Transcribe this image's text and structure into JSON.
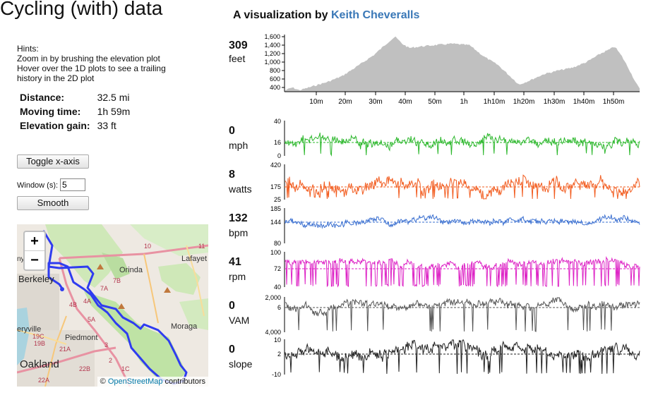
{
  "title": "Cycling (with) data",
  "subtitle": {
    "prefix": "A visualization by ",
    "author": "Keith Cheveralls"
  },
  "hints": {
    "heading": "Hints:",
    "lines": [
      "Zoom in by brushing the elevation plot",
      "Hover over the 1D plots to see a trailing",
      "history in the 2D plot"
    ]
  },
  "stats": [
    {
      "label": "Distance:",
      "value": "32.5 mi"
    },
    {
      "label": "Moving time:",
      "value": "1h 59m"
    },
    {
      "label": "Elevation gain:",
      "value": "33 ft"
    }
  ],
  "controls": {
    "toggle_label": "Toggle x-axis",
    "window_label": "Window (s):",
    "window_value": "5",
    "smooth_label": "Smooth"
  },
  "map": {
    "zoom_in": "+",
    "zoom_out": "−",
    "attribution_prefix": "© ",
    "attribution_link": "OpenStreetMap",
    "attribution_suffix": " contributors",
    "labels": [
      {
        "text": "Orinda"
      },
      {
        "text": "Lafayet"
      },
      {
        "text": "Berkeley"
      },
      {
        "text": "Moraga"
      },
      {
        "text": "Piedmont"
      },
      {
        "text": "Oakland"
      },
      {
        "text": "eryville"
      },
      {
        "text": "ny"
      }
    ],
    "road_labels": [
      "10",
      "7B",
      "7A",
      "4B",
      "4A",
      "5A",
      "3",
      "2",
      "1C",
      "21A",
      "22B",
      "19C",
      "19B",
      "11",
      "22A"
    ],
    "route_color": "#2f3cf0"
  },
  "elevation": {
    "current_value": "309",
    "unit": "feet",
    "y_ticks": [
      "1,600",
      "1,400",
      "1,200",
      "1,000",
      "800",
      "600",
      "400"
    ],
    "x_ticks": [
      "10m",
      "20m",
      "30m",
      "40m",
      "50m",
      "1h",
      "1h10m",
      "1h20m",
      "1h30m",
      "1h40m",
      "1h50m"
    ],
    "color": "#c0c0c0"
  },
  "metrics": [
    {
      "id": "speed",
      "current_value": "0",
      "unit": "mph",
      "ticks": [
        "40",
        "16",
        "0"
      ],
      "color": "#2db82d"
    },
    {
      "id": "power",
      "current_value": "8",
      "unit": "watts",
      "ticks": [
        "420",
        "175",
        "25"
      ],
      "color": "#f25c1f"
    },
    {
      "id": "heart-rate",
      "current_value": "132",
      "unit": "bpm",
      "ticks": [
        "185",
        "144",
        "80"
      ],
      "color": "#3a6fd0"
    },
    {
      "id": "cadence",
      "current_value": "41",
      "unit": "rpm",
      "ticks": [
        "100",
        "72",
        "40"
      ],
      "color": "#dd22c5"
    },
    {
      "id": "vam",
      "current_value": "0",
      "unit": "VAM",
      "ticks": [
        "2,000",
        "6",
        "4,000"
      ],
      "color": "#555555"
    },
    {
      "id": "slope",
      "current_value": "0",
      "unit": "slope",
      "ticks": [
        "10",
        "2",
        "-10"
      ],
      "color": "#222222"
    }
  ]
}
